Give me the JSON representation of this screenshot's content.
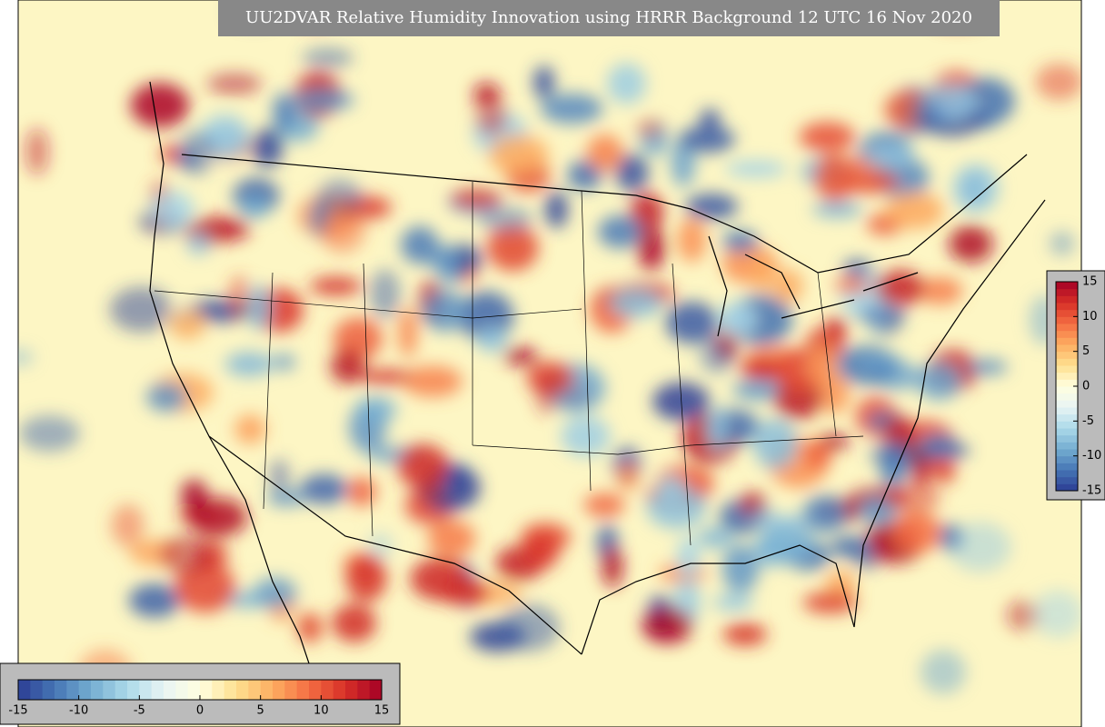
{
  "title": "UU2DVAR Relative Humidity Innovation using HRRR Background 12 UTC 16 Nov 2020",
  "colorbar": {
    "lim": [
      -15,
      15
    ],
    "ticks": [
      -15,
      -10,
      -5,
      0,
      5,
      10,
      15
    ],
    "colors": [
      "#2c3d94",
      "#4575b4",
      "#74add1",
      "#abd9e9",
      "#e8f4f4",
      "#ffffe0",
      "#fee090",
      "#fdae61",
      "#f46d43",
      "#d73027",
      "#a50026"
    ]
  }
}
